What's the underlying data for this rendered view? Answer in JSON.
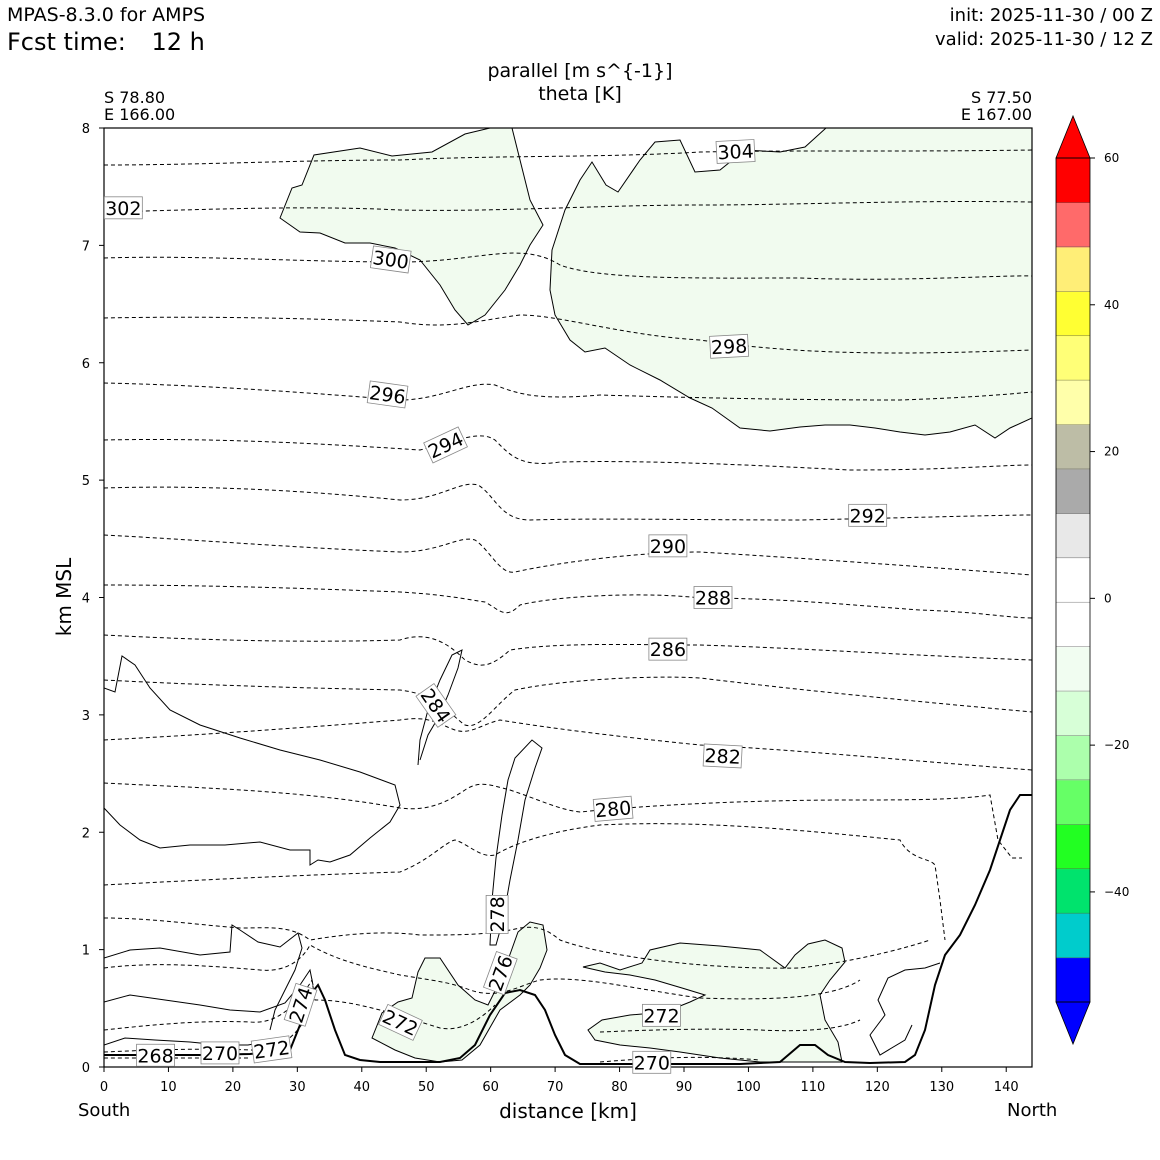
{
  "header": {
    "model": "MPAS-8.3.0 for AMPS",
    "fcst_label": "Fcst time:",
    "fcst_value": "12 h",
    "init": "init: 2025-11-30 / 00 Z",
    "valid": "valid: 2025-11-30 / 12 Z"
  },
  "chart_data": {
    "type": "cross-section",
    "title_line1": "parallel [m s^{-1}]",
    "title_line2": "theta [K]",
    "left_point": {
      "lat": "S 78.80",
      "lon": "E 166.00"
    },
    "right_point": {
      "lat": "S 77.50",
      "lon": "E 167.00"
    },
    "xlabel": "distance [km]",
    "ylabel": "km MSL",
    "x_end_labels": {
      "left": "South",
      "right": "North"
    },
    "xlim": [
      0,
      144
    ],
    "ylim": [
      0,
      8
    ],
    "xticks": [
      0,
      10,
      20,
      30,
      40,
      50,
      60,
      70,
      80,
      90,
      100,
      110,
      120,
      130,
      140
    ],
    "yticks": [
      0,
      1,
      2,
      3,
      4,
      5,
      6,
      7,
      8
    ],
    "theta_contour_labels": [
      {
        "value": "268",
        "x": 8,
        "y": 0.1,
        "angle": 0
      },
      {
        "value": "270",
        "x": 18,
        "y": 0.12,
        "angle": 0
      },
      {
        "value": "272",
        "x": 26,
        "y": 0.15,
        "angle": -8
      },
      {
        "value": "274",
        "x": 30.5,
        "y": 0.53,
        "angle": -72
      },
      {
        "value": "272",
        "x": 46,
        "y": 0.38,
        "angle": 25
      },
      {
        "value": "276",
        "x": 61.5,
        "y": 0.8,
        "angle": -70
      },
      {
        "value": "278",
        "x": 61,
        "y": 1.3,
        "angle": -90
      },
      {
        "value": "270",
        "x": 85,
        "y": 0.04,
        "angle": 0
      },
      {
        "value": "272",
        "x": 86.5,
        "y": 0.44,
        "angle": 0
      },
      {
        "value": "280",
        "x": 79,
        "y": 2.2,
        "angle": -5
      },
      {
        "value": "282",
        "x": 96,
        "y": 2.65,
        "angle": 3
      },
      {
        "value": "284",
        "x": 51.5,
        "y": 3.08,
        "angle": 55
      },
      {
        "value": "286",
        "x": 87.5,
        "y": 3.56,
        "angle": 0
      },
      {
        "value": "288",
        "x": 94.5,
        "y": 4.0,
        "angle": 0
      },
      {
        "value": "290",
        "x": 87.5,
        "y": 4.44,
        "angle": 0
      },
      {
        "value": "292",
        "x": 118.5,
        "y": 4.7,
        "angle": 0
      },
      {
        "value": "294",
        "x": 53,
        "y": 5.3,
        "angle": -25
      },
      {
        "value": "296",
        "x": 44,
        "y": 5.73,
        "angle": 8
      },
      {
        "value": "298",
        "x": 97,
        "y": 6.14,
        "angle": -3
      },
      {
        "value": "300",
        "x": 44.5,
        "y": 6.88,
        "angle": 8
      },
      {
        "value": "302",
        "x": 3,
        "y": 7.32,
        "angle": 0
      },
      {
        "value": "304",
        "x": 98,
        "y": 7.8,
        "angle": -3
      }
    ],
    "colorbar": {
      "levels": [
        -55,
        -50,
        -45,
        -40,
        -35,
        -30,
        -25,
        -20,
        -15,
        -10,
        -5,
        0,
        5,
        10,
        15,
        20,
        25,
        30,
        35,
        40,
        45,
        50,
        55,
        60
      ],
      "colors": [
        "#0000ff",
        "#00cccc",
        "#00e36d",
        "#22ff22",
        "#66ff66",
        "#acffac",
        "#d7ffd7",
        "#f1fdf1",
        "#ffffff",
        "#ffffff",
        "#e8e8e8",
        "#aaaaaa",
        "#bdbda6",
        "#ffffaa",
        "#ffff77",
        "#ffff33",
        "#ffee77",
        "#ff6a6a",
        "#ff0000"
      ],
      "under_color": "#0000ff",
      "over_color": "#ff0000",
      "tick_labels": [
        "60",
        "40",
        "20",
        "0",
        "−20",
        "−40"
      ],
      "tick_values": [
        60,
        40,
        20,
        0,
        -20,
        -40
      ]
    },
    "colors": {
      "shade": "#f1fbef",
      "terrain": "#000000",
      "contour": "#000000"
    }
  }
}
